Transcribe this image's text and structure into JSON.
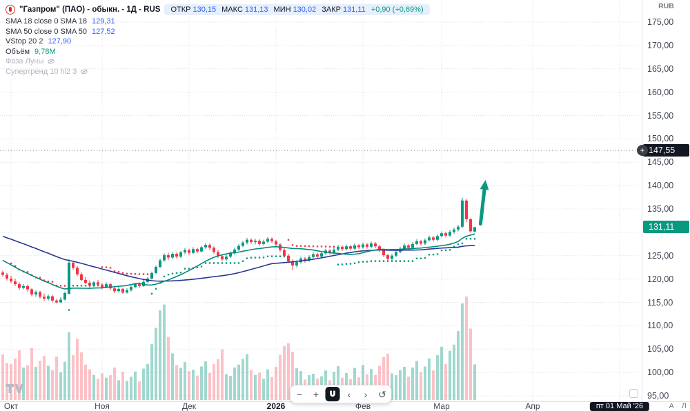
{
  "header": {
    "title": "\"Газпром\" (ПАО) - обыкн. - 1Д - RUS",
    "ohlc": [
      {
        "k": "ОТКР",
        "v": "130,15"
      },
      {
        "k": "МАКС",
        "v": "131,13"
      },
      {
        "k": "МИН",
        "v": "130,02"
      },
      {
        "k": "ЗАКР",
        "v": "131,11"
      }
    ],
    "change": "+0,90 (+0,69%)",
    "currency": "RUB"
  },
  "indicators": [
    {
      "id": "sma18",
      "name": "SMA 18 close 0 SMA 18",
      "value": "129,31",
      "value_color": "#2962ff",
      "enabled": true
    },
    {
      "id": "sma50",
      "name": "SMA 50 close 0 SMA 50",
      "value": "127,52",
      "value_color": "#2962ff",
      "enabled": true
    },
    {
      "id": "vstop",
      "name": "VStop 20 2",
      "value": "127,90",
      "value_color": "#2962ff",
      "enabled": true
    },
    {
      "id": "volume",
      "name": "Объём",
      "value": "9,78M",
      "value_color": "#089981",
      "enabled": true
    },
    {
      "id": "moon-phase",
      "name": "Фаза Луны",
      "value": "",
      "value_color": "",
      "enabled": false
    },
    {
      "id": "supertrend",
      "name": "Супертренд 10 hl2 3",
      "value": "",
      "value_color": "",
      "enabled": false
    }
  ],
  "axis": {
    "y_ticks": [
      {
        "p": 175,
        "label": "175,00"
      },
      {
        "p": 170,
        "label": "170,00"
      },
      {
        "p": 165,
        "label": "165,00"
      },
      {
        "p": 160,
        "label": "160,00"
      },
      {
        "p": 155,
        "label": "155,00"
      },
      {
        "p": 150,
        "label": "150,00"
      },
      {
        "p": 145,
        "label": "145,00"
      },
      {
        "p": 140,
        "label": "140,00"
      },
      {
        "p": 135,
        "label": "135,00"
      },
      {
        "p": 125,
        "label": "125,00"
      },
      {
        "p": 120,
        "label": "120,00"
      },
      {
        "p": 115,
        "label": "115,00"
      },
      {
        "p": 110,
        "label": "110,00"
      },
      {
        "p": 105,
        "label": "105,00"
      },
      {
        "p": 100,
        "label": "100,00"
      },
      {
        "p": 95,
        "label": "95,00"
      }
    ],
    "months": [
      {
        "label": "Окт",
        "idx": 2
      },
      {
        "label": "Ноя",
        "idx": 24
      },
      {
        "label": "Дек",
        "idx": 45
      },
      {
        "label": "2026",
        "idx": 66,
        "bold": true
      },
      {
        "label": "Фев",
        "idx": 87
      },
      {
        "label": "Мар",
        "idx": 106
      },
      {
        "label": "Апр",
        "idx": 128
      }
    ],
    "auto_label": "А",
    "log_label": "Л"
  },
  "price_labels": {
    "crosshair": {
      "price": 147.55,
      "label": "147,55"
    },
    "last": {
      "price": 131.11,
      "label": "131,11"
    }
  },
  "time_labels": {
    "crosshair_date": {
      "idx": 149,
      "label": "пт 01 Май '26"
    }
  },
  "toolbar": {
    "zoom_out": "−",
    "zoom_in": "+",
    "pan_left": "‹",
    "pan_right": "›",
    "reset": "↺"
  },
  "icons": {
    "plus": "+"
  },
  "colors": {
    "up": "#089981",
    "down": "#f23645",
    "vol_up": "rgba(8,153,129,0.38)",
    "vol_down": "rgba(242,54,69,0.30)",
    "sma18": "#00897b",
    "sma50": "#283593",
    "vstop_up": "#089981",
    "vstop_down": "#f23645",
    "arrow": "#089981",
    "grid": "#dde0e8",
    "crosshair": "#73767f",
    "accent_blue": "#2962ff",
    "label_dark": "#131722",
    "label_green": "#089981"
  },
  "chart_data": {
    "type": "candlestick",
    "ylim": [
      95,
      175
    ],
    "ohlc_format": "[open, high, low, close, volume_millions]",
    "indicator_params": {
      "sma_fast": 18,
      "sma_slow": 50,
      "vstop_length": 20,
      "vstop_mult": 2
    },
    "arrow": {
      "i1": 115.4,
      "p1": 131.8,
      "i2": 116.6,
      "p2": 141.2
    },
    "prehistory_closes": [
      135.5,
      135.1,
      134.8,
      135.2,
      134.6,
      134.2,
      134.5,
      133.9,
      133.6,
      133.8,
      133.3,
      132.9,
      133.1,
      132.6,
      132.3,
      132.5,
      132.0,
      131.7,
      131.9,
      131.4,
      131.1,
      131.3,
      130.8,
      130.5,
      130.7,
      130.2,
      129.9,
      130.1,
      129.6,
      129.3,
      129.5,
      129.0,
      128.7,
      128.9,
      128.4,
      127.6,
      126.9,
      126.1,
      125.4,
      124.7,
      124.1,
      123.5,
      123.0,
      122.6,
      122.2,
      121.9,
      121.7,
      121.5,
      121.4,
      121.2
    ],
    "candles": [
      [
        121.4,
        121.8,
        120.5,
        120.9,
        12.5
      ],
      [
        120.9,
        121.3,
        119.7,
        120.1,
        10.2
      ],
      [
        120.1,
        120.7,
        119.1,
        119.5,
        9.8
      ],
      [
        119.5,
        120.1,
        118.5,
        118.9,
        11.4
      ],
      [
        118.9,
        119.3,
        117.7,
        118.1,
        13.6
      ],
      [
        118.1,
        118.9,
        117.8,
        118.5,
        8.9
      ],
      [
        118.5,
        118.8,
        117.3,
        117.8,
        9.5
      ],
      [
        117.8,
        118.1,
        116.3,
        116.7,
        14.2
      ],
      [
        116.7,
        117.6,
        116.2,
        117.2,
        9.1
      ],
      [
        117.2,
        117.5,
        115.8,
        116.2,
        10.8
      ],
      [
        116.2,
        116.9,
        115.3,
        115.8,
        12.1
      ],
      [
        115.8,
        116.7,
        115.4,
        116.3,
        9.4
      ],
      [
        116.3,
        116.6,
        115.0,
        115.4,
        8.2
      ],
      [
        115.4,
        115.8,
        114.8,
        115.0,
        11.9
      ],
      [
        115.0,
        116.1,
        114.9,
        115.6,
        7.6
      ],
      [
        115.6,
        117.3,
        115.4,
        117.0,
        10.5
      ],
      [
        116.8,
        124.2,
        116.8,
        123.5,
        18.6
      ],
      [
        123.5,
        123.9,
        122.0,
        122.4,
        12.3
      ],
      [
        122.4,
        122.8,
        120.6,
        121.0,
        16.8
      ],
      [
        121.0,
        121.5,
        119.5,
        119.8,
        13.1
      ],
      [
        119.8,
        120.4,
        118.9,
        119.2,
        9.7
      ],
      [
        119.2,
        119.7,
        118.2,
        118.6,
        8.4
      ],
      [
        118.6,
        119.6,
        118.3,
        119.3,
        6.9
      ],
      [
        119.3,
        119.8,
        118.4,
        118.8,
        5.8
      ],
      [
        118.8,
        119.2,
        117.8,
        118.2,
        7.3
      ],
      [
        118.2,
        119.3,
        118.0,
        118.9,
        6.1
      ],
      [
        118.9,
        119.1,
        117.6,
        118.0,
        6.8
      ],
      [
        118.0,
        118.4,
        117.0,
        117.4,
        8.9
      ],
      [
        117.4,
        118.3,
        117.1,
        117.9,
        5.4
      ],
      [
        117.9,
        118.1,
        116.8,
        117.1,
        7.7
      ],
      [
        117.1,
        118.0,
        116.9,
        117.6,
        5.2
      ],
      [
        117.6,
        118.6,
        117.3,
        118.3,
        6.4
      ],
      [
        118.3,
        119.2,
        118.0,
        118.9,
        7.8
      ],
      [
        118.9,
        119.3,
        118.1,
        118.5,
        5.1
      ],
      [
        118.5,
        119.8,
        118.3,
        119.4,
        8.6
      ],
      [
        119.4,
        120.4,
        119.1,
        120.1,
        9.9
      ],
      [
        120.1,
        121.6,
        119.9,
        121.3,
        15.4
      ],
      [
        121.3,
        122.9,
        121.0,
        122.6,
        19.8
      ],
      [
        122.6,
        124.4,
        122.3,
        124.0,
        24.6
      ],
      [
        124.0,
        125.5,
        123.7,
        125.1,
        26.2
      ],
      [
        125.1,
        125.6,
        124.1,
        124.6,
        17.3
      ],
      [
        124.6,
        125.8,
        124.3,
        125.4,
        12.8
      ],
      [
        125.4,
        125.7,
        124.4,
        124.8,
        9.6
      ],
      [
        124.8,
        126.0,
        124.5,
        125.7,
        8.8
      ],
      [
        125.7,
        126.6,
        125.3,
        126.2,
        10.4
      ],
      [
        126.2,
        126.5,
        125.1,
        125.6,
        7.9
      ],
      [
        125.6,
        126.8,
        125.4,
        126.4,
        8.3
      ],
      [
        126.4,
        126.7,
        125.5,
        125.9,
        6.7
      ],
      [
        125.9,
        127.1,
        125.7,
        126.8,
        9.2
      ],
      [
        126.8,
        127.7,
        126.4,
        127.3,
        10.6
      ],
      [
        127.3,
        127.6,
        126.2,
        126.7,
        7.4
      ],
      [
        126.7,
        127.0,
        125.4,
        125.8,
        9.8
      ],
      [
        125.8,
        126.2,
        124.5,
        124.9,
        11.2
      ],
      [
        124.9,
        125.3,
        123.8,
        124.2,
        13.9
      ],
      [
        124.2,
        125.2,
        123.9,
        124.8,
        7.1
      ],
      [
        124.8,
        125.9,
        124.5,
        125.5,
        6.6
      ],
      [
        125.5,
        126.7,
        125.2,
        126.3,
        8.9
      ],
      [
        126.3,
        127.5,
        126.0,
        127.1,
        9.7
      ],
      [
        127.1,
        128.2,
        126.8,
        127.8,
        11.3
      ],
      [
        127.8,
        128.8,
        127.4,
        128.4,
        12.6
      ],
      [
        128.4,
        128.7,
        127.5,
        127.9,
        8.2
      ],
      [
        127.9,
        128.6,
        127.4,
        128.2,
        6.9
      ],
      [
        128.2,
        128.5,
        127.1,
        127.5,
        7.5
      ],
      [
        127.5,
        128.4,
        127.2,
        128.0,
        5.8
      ],
      [
        128.0,
        129.0,
        127.7,
        128.6,
        8.4
      ],
      [
        128.6,
        128.9,
        127.7,
        128.1,
        6.3
      ],
      [
        128.1,
        128.4,
        127.0,
        127.4,
        9.1
      ],
      [
        127.4,
        127.7,
        125.8,
        126.2,
        12.4
      ],
      [
        126.2,
        126.6,
        124.6,
        125.0,
        14.8
      ],
      [
        125.0,
        125.4,
        123.4,
        123.8,
        15.6
      ],
      [
        123.8,
        124.2,
        121.9,
        122.9,
        13.2
      ],
      [
        122.9,
        124.0,
        122.5,
        123.6,
        8.7
      ],
      [
        123.6,
        124.8,
        123.3,
        124.4,
        7.9
      ],
      [
        124.4,
        124.7,
        123.5,
        123.9,
        5.6
      ],
      [
        123.9,
        125.1,
        123.7,
        124.7,
        6.8
      ],
      [
        124.7,
        125.7,
        124.4,
        125.3,
        7.2
      ],
      [
        125.3,
        125.6,
        124.4,
        124.8,
        5.9
      ],
      [
        124.8,
        125.9,
        124.5,
        125.5,
        6.5
      ],
      [
        125.5,
        126.5,
        125.2,
        126.1,
        8.1
      ],
      [
        126.1,
        126.4,
        125.2,
        125.6,
        5.4
      ],
      [
        125.6,
        126.7,
        125.3,
        126.3,
        7.7
      ],
      [
        126.3,
        127.3,
        126.0,
        126.9,
        9.3
      ],
      [
        126.9,
        127.2,
        126.0,
        126.4,
        6.1
      ],
      [
        126.4,
        127.4,
        126.1,
        127.0,
        7.4
      ],
      [
        127.0,
        127.3,
        126.1,
        126.5,
        5.7
      ],
      [
        126.5,
        127.6,
        126.2,
        127.2,
        8.8
      ],
      [
        127.2,
        127.5,
        126.4,
        126.8,
        6.2
      ],
      [
        126.8,
        127.8,
        126.5,
        127.4,
        9.6
      ],
      [
        127.4,
        127.7,
        126.5,
        126.9,
        7.1
      ],
      [
        126.9,
        128.0,
        126.6,
        127.6,
        8.5
      ],
      [
        127.6,
        127.9,
        126.6,
        127.0,
        6.9
      ],
      [
        127.0,
        127.3,
        125.8,
        126.2,
        9.4
      ],
      [
        126.2,
        126.5,
        124.7,
        125.1,
        11.8
      ],
      [
        125.1,
        125.4,
        123.8,
        124.3,
        12.7
      ],
      [
        124.3,
        125.4,
        124.0,
        125.0,
        7.3
      ],
      [
        125.0,
        126.1,
        124.7,
        125.8,
        6.8
      ],
      [
        125.8,
        126.9,
        125.5,
        126.5,
        8.2
      ],
      [
        126.5,
        127.6,
        126.2,
        127.2,
        9.1
      ],
      [
        127.2,
        127.5,
        126.3,
        126.7,
        6.4
      ],
      [
        126.7,
        127.9,
        126.4,
        127.5,
        8.9
      ],
      [
        127.5,
        128.5,
        127.2,
        128.1,
        10.7
      ],
      [
        128.1,
        128.4,
        127.2,
        127.6,
        7.6
      ],
      [
        127.6,
        128.7,
        127.3,
        128.3,
        9.2
      ],
      [
        128.3,
        129.3,
        128.0,
        128.9,
        11.4
      ],
      [
        128.9,
        129.2,
        128.0,
        128.4,
        8.1
      ],
      [
        128.4,
        129.6,
        128.1,
        129.2,
        12.3
      ],
      [
        129.2,
        130.2,
        128.9,
        129.8,
        14.6
      ],
      [
        129.8,
        130.1,
        128.9,
        129.3,
        9.8
      ],
      [
        129.3,
        130.5,
        129.0,
        130.1,
        13.5
      ],
      [
        130.1,
        131.0,
        129.7,
        130.6,
        15.2
      ],
      [
        130.6,
        131.6,
        130.2,
        131.2,
        18.9
      ],
      [
        131.2,
        137.4,
        130.9,
        136.8,
        26.5
      ],
      [
        136.8,
        137.1,
        132.2,
        132.8,
        28.4
      ],
      [
        132.8,
        133.0,
        129.9,
        130.21,
        19.6
      ],
      [
        130.15,
        131.13,
        130.02,
        131.11,
        9.78
      ]
    ]
  }
}
